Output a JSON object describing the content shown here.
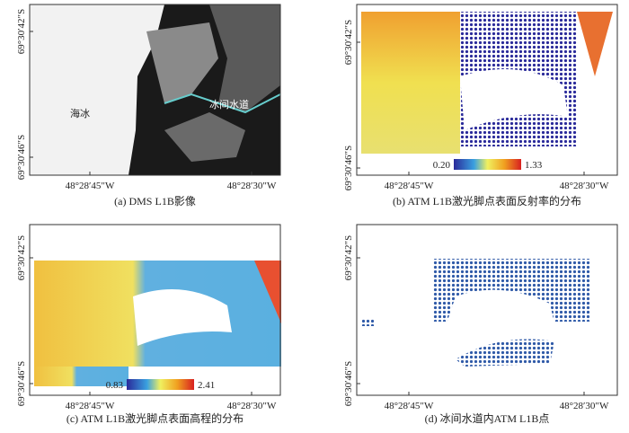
{
  "panels": [
    {
      "caption": "(a) DMS L1B影像",
      "y_ticks": [
        "69°30′42″S",
        "69°30′46″S"
      ],
      "x_ticks": [
        "48°28′45″W",
        "48°28′30″W"
      ],
      "annotations": [
        "海冰",
        "冰间水道"
      ]
    },
    {
      "caption": "(b) ATM L1B激光脚点表面反射率的分布",
      "y_ticks": [
        "69°30′42″S",
        "69°30′46″S"
      ],
      "x_ticks": [
        "48°28′45″W",
        "48°28′30″W"
      ],
      "colorbar": [
        "0.20",
        "1.33"
      ]
    },
    {
      "caption": "(c) ATM L1B激光脚点表面高程的分布",
      "y_ticks": [
        "69°30′42″S",
        "69°30′46″S"
      ],
      "x_ticks": [
        "48°28′45″W",
        "48°28′30″W"
      ],
      "colorbar": [
        "0.83",
        "2.41"
      ]
    },
    {
      "caption": "(d) 冰间水道内ATM L1B点",
      "y_ticks": [
        "69°30′42″S",
        "69°30′46″S"
      ],
      "x_ticks": [
        "48°28′45″W",
        "48°28′30″W"
      ]
    }
  ]
}
